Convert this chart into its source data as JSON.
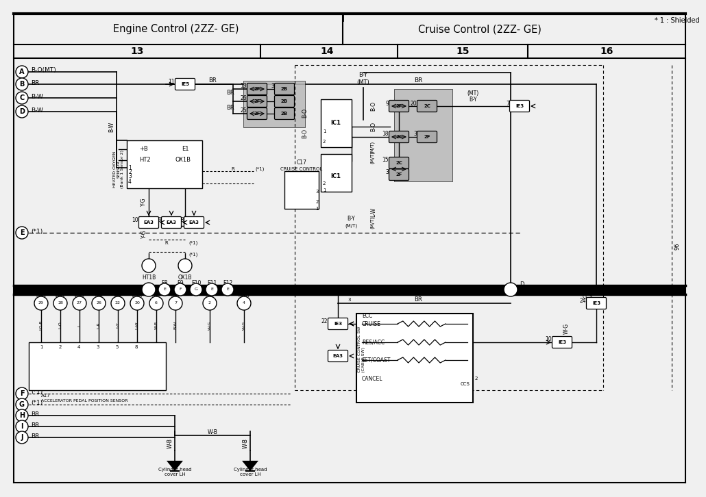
{
  "bg_color": "#f0f0f0",
  "white": "#ffffff",
  "black": "#000000",
  "gray_fill": "#b0b0b0",
  "light_gray": "#d0d0d0",
  "section1_title": "Engine Control (2ZZ- GE)",
  "section2_title": "Cruise Control (2ZZ- GE)",
  "footnote": "* 1 : Shielded",
  "col_nums": [
    "13",
    "14",
    "15",
    "16"
  ],
  "row_labels_left": [
    "A",
    "B",
    "C",
    "D",
    "E",
    "F",
    "G",
    "H",
    "I",
    "J"
  ],
  "wire_br": "BR",
  "wire_bw": "B-W",
  "wire_bo": "B-O",
  "wire_by": "B-Y",
  "wire_yg": "Y-G",
  "wire_wb": "W-B",
  "wire_wg": "W-G",
  "wire_lw": "L-W",
  "wire_ly": "L-Y",
  "wire_lr": "L-R",
  "wire_lo": "L-O",
  "wire_lgr": "LG-R"
}
